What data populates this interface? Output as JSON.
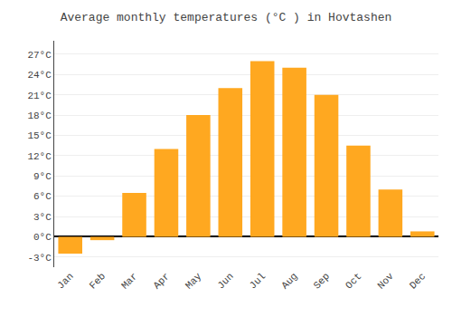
{
  "chart_data": {
    "type": "bar",
    "title": "Average monthly temperatures (°C ) in Hovtashen",
    "categories": [
      "Jan",
      "Feb",
      "Mar",
      "Apr",
      "May",
      "Jun",
      "Jul",
      "Aug",
      "Sep",
      "Oct",
      "Nov",
      "Dec"
    ],
    "values": [
      -2.5,
      -0.5,
      6.5,
      13.0,
      18.0,
      22.0,
      26.0,
      25.0,
      21.0,
      13.5,
      7.0,
      0.8
    ],
    "color": "#FFA820",
    "ylim": [
      -4.5,
      29
    ],
    "yticks": [
      {
        "value": -3,
        "label": "-3°C"
      },
      {
        "value": 0,
        "label": "0°C"
      },
      {
        "value": 3,
        "label": "3°C"
      },
      {
        "value": 6,
        "label": "6°C"
      },
      {
        "value": 9,
        "label": "9°C"
      },
      {
        "value": 12,
        "label": "12°C"
      },
      {
        "value": 15,
        "label": "15°C"
      },
      {
        "value": 18,
        "label": "18°C"
      },
      {
        "value": 21,
        "label": "21°C"
      },
      {
        "value": 24,
        "label": "24°C"
      },
      {
        "value": 27,
        "label": "27°C"
      }
    ],
    "grid": true
  }
}
